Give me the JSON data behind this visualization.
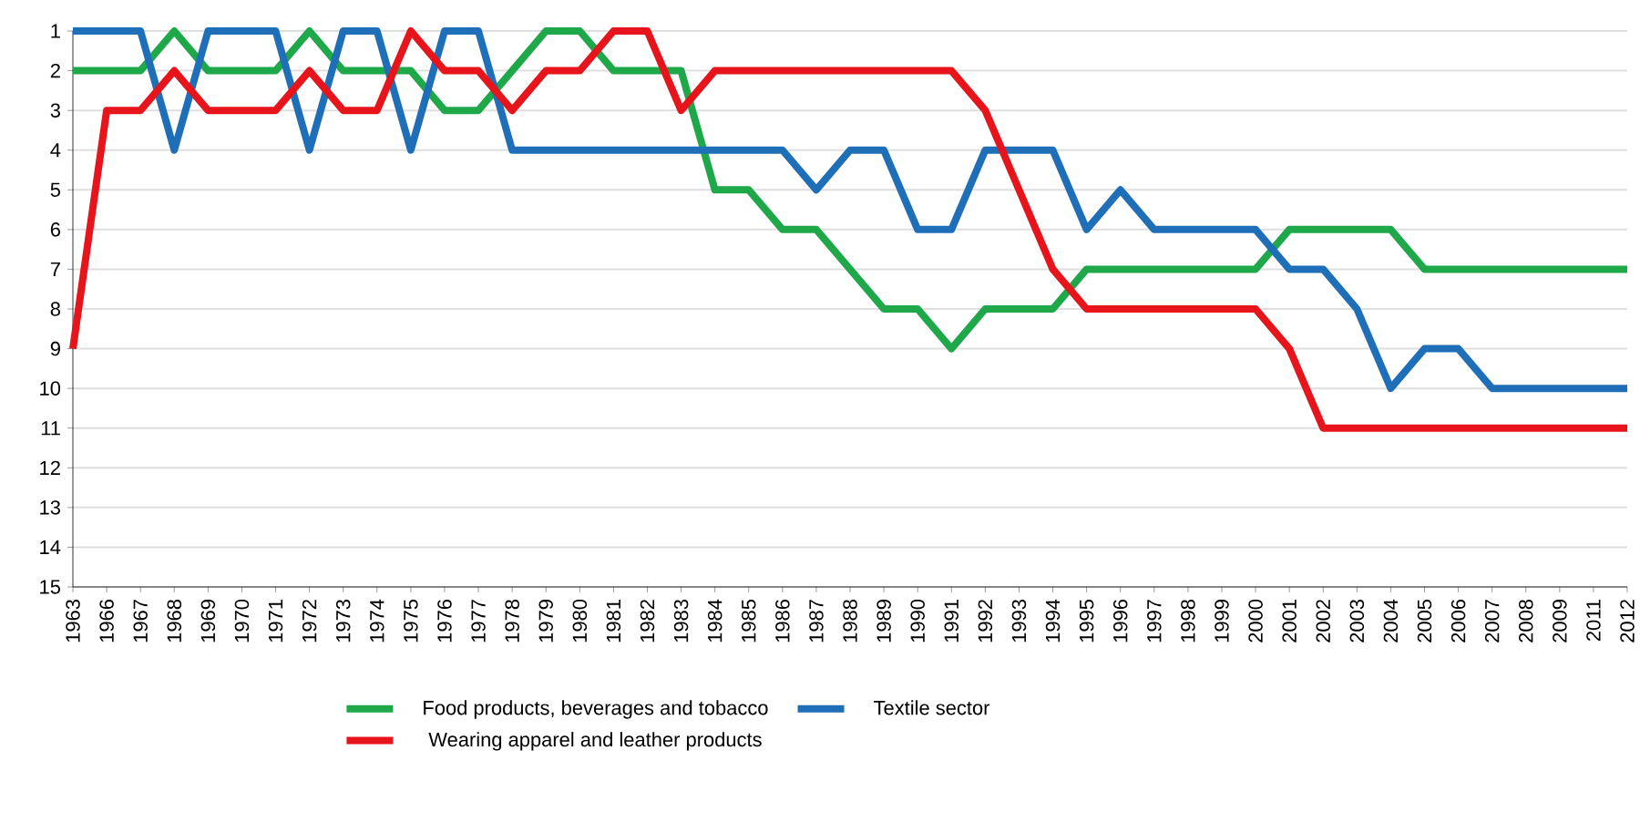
{
  "chart_data": {
    "type": "line",
    "categories": [
      "1963",
      "1966",
      "1967",
      "1968",
      "1969",
      "1970",
      "1971",
      "1972",
      "1973",
      "1974",
      "1975",
      "1976",
      "1977",
      "1978",
      "1979",
      "1980",
      "1981",
      "1982",
      "1983",
      "1984",
      "1985",
      "1986",
      "1987",
      "1988",
      "1989",
      "1990",
      "1991",
      "1992",
      "1993",
      "1994",
      "1995",
      "1996",
      "1997",
      "1998",
      "1999",
      "2000",
      "2001",
      "2002",
      "2003",
      "2004",
      "2005",
      "2006",
      "2007",
      "2008",
      "2009",
      "2011",
      "2012"
    ],
    "series": [
      {
        "name": "Food products, beverages and tobacco",
        "color": "#1fa84a",
        "values": [
          2,
          2,
          2,
          1,
          2,
          2,
          2,
          1,
          2,
          2,
          2,
          3,
          3,
          2,
          1,
          1,
          2,
          2,
          2,
          5,
          5,
          6,
          6,
          7,
          8,
          8,
          9,
          8,
          8,
          8,
          7,
          7,
          7,
          7,
          7,
          7,
          6,
          6,
          6,
          6,
          7,
          7,
          7,
          7,
          7,
          7,
          7
        ]
      },
      {
        "name": "Textile sector",
        "color": "#1f6fb8",
        "values": [
          1,
          1,
          1,
          4,
          1,
          1,
          1,
          4,
          1,
          1,
          4,
          1,
          1,
          4,
          4,
          4,
          4,
          4,
          4,
          4,
          4,
          4,
          5,
          4,
          4,
          6,
          6,
          4,
          4,
          4,
          6,
          5,
          6,
          6,
          6,
          6,
          7,
          7,
          8,
          10,
          9,
          9,
          10,
          10,
          10,
          10,
          10
        ]
      },
      {
        "name": "Wearing apparel and leather products",
        "color": "#e8141b",
        "values": [
          9,
          3,
          3,
          2,
          3,
          3,
          3,
          2,
          3,
          3,
          1,
          2,
          2,
          3,
          2,
          2,
          1,
          1,
          3,
          2,
          2,
          2,
          2,
          2,
          2,
          2,
          2,
          3,
          5,
          7,
          8,
          8,
          8,
          8,
          8,
          8,
          9,
          11,
          11,
          11,
          11,
          11,
          11,
          11,
          11,
          11,
          11
        ]
      }
    ],
    "ylim": [
      15,
      1
    ],
    "yticks": [
      1,
      2,
      3,
      4,
      5,
      6,
      7,
      8,
      9,
      10,
      11,
      12,
      13,
      14,
      15
    ],
    "grid": "y",
    "legend": "bottom",
    "line_style": "solid",
    "marker": "none"
  }
}
